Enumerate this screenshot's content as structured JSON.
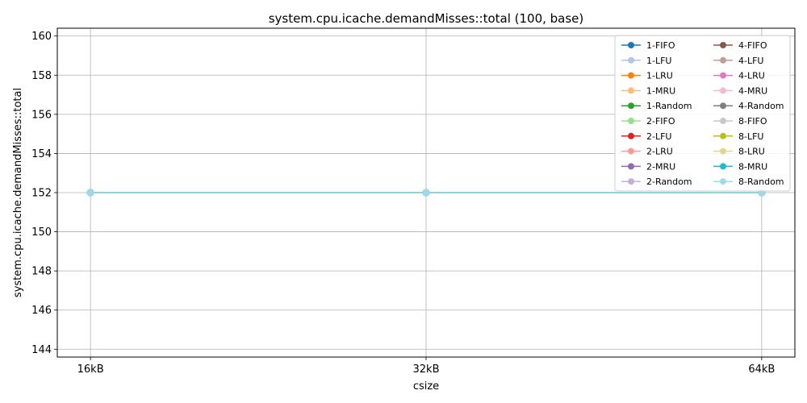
{
  "chart_data": {
    "type": "line",
    "title": "system.cpu.icache.demandMisses::total (100, base)",
    "xlabel": "csize",
    "ylabel": "system.cpu.icache.demandMisses::total",
    "categories": [
      "16kB",
      "32kB",
      "64kB"
    ],
    "ylim": [
      143.6,
      160.4
    ],
    "yticks": [
      144,
      146,
      148,
      150,
      152,
      154,
      156,
      158,
      160
    ],
    "grid": true,
    "legend_position": "top-right",
    "series": [
      {
        "name": "1-FIFO",
        "color": "#1f77b4",
        "values": [
          152,
          152,
          152
        ]
      },
      {
        "name": "1-LFU",
        "color": "#aec7e8",
        "values": [
          152,
          152,
          152
        ]
      },
      {
        "name": "1-LRU",
        "color": "#ff7f0e",
        "values": [
          152,
          152,
          152
        ]
      },
      {
        "name": "1-MRU",
        "color": "#ffbb78",
        "values": [
          152,
          152,
          152
        ]
      },
      {
        "name": "1-Random",
        "color": "#2ca02c",
        "values": [
          152,
          152,
          152
        ]
      },
      {
        "name": "2-FIFO",
        "color": "#98df8a",
        "values": [
          152,
          152,
          152
        ]
      },
      {
        "name": "2-LFU",
        "color": "#d62728",
        "values": [
          152,
          152,
          152
        ]
      },
      {
        "name": "2-LRU",
        "color": "#ff9896",
        "values": [
          152,
          152,
          152
        ]
      },
      {
        "name": "2-MRU",
        "color": "#9467bd",
        "values": [
          152,
          152,
          152
        ]
      },
      {
        "name": "2-Random",
        "color": "#c5b0d5",
        "values": [
          152,
          152,
          152
        ]
      },
      {
        "name": "4-FIFO",
        "color": "#8c564b",
        "values": [
          152,
          152,
          152
        ]
      },
      {
        "name": "4-LFU",
        "color": "#c49c94",
        "values": [
          152,
          152,
          152
        ]
      },
      {
        "name": "4-LRU",
        "color": "#e377c2",
        "values": [
          152,
          152,
          152
        ]
      },
      {
        "name": "4-MRU",
        "color": "#f7b6d2",
        "values": [
          152,
          152,
          152
        ]
      },
      {
        "name": "4-Random",
        "color": "#7f7f7f",
        "values": [
          152,
          152,
          152
        ]
      },
      {
        "name": "8-FIFO",
        "color": "#c7c7c7",
        "values": [
          152,
          152,
          152
        ]
      },
      {
        "name": "8-LFU",
        "color": "#bcbd22",
        "values": [
          152,
          152,
          152
        ]
      },
      {
        "name": "8-LRU",
        "color": "#dbdb8d",
        "values": [
          152,
          152,
          152
        ]
      },
      {
        "name": "8-MRU",
        "color": "#17becf",
        "values": [
          152,
          152,
          152
        ]
      },
      {
        "name": "8-Random",
        "color": "#9edae5",
        "values": [
          152,
          152,
          152
        ]
      }
    ]
  }
}
